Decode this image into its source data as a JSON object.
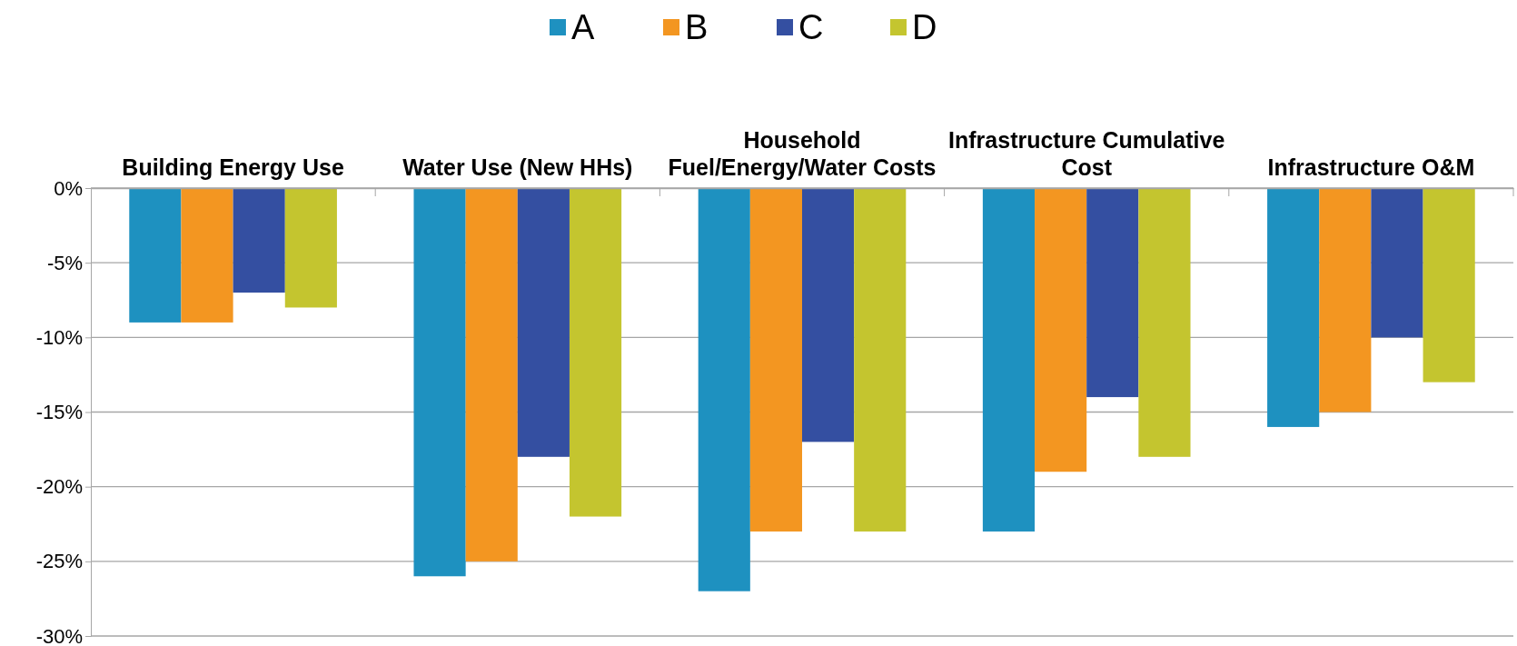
{
  "chart_data": {
    "type": "bar",
    "categories": [
      "Building Energy Use",
      "Water Use (New HHs)",
      "Household Fuel/Energy/Water Costs",
      "Infrastructure Cumulative Cost",
      "Infrastructure O&M"
    ],
    "series": [
      {
        "name": "A",
        "color": "#1e91c0",
        "values": [
          -9,
          -26,
          -27,
          -23,
          -16
        ]
      },
      {
        "name": "B",
        "color": "#f39621",
        "values": [
          -9,
          -25,
          -23,
          -19,
          -15
        ]
      },
      {
        "name": "C",
        "color": "#344fa1",
        "values": [
          -7,
          -18,
          -17,
          -14,
          -10
        ]
      },
      {
        "name": "D",
        "color": "#c4c52f",
        "values": [
          -8,
          -22,
          -23,
          -18,
          -13
        ]
      }
    ],
    "ylim": [
      -30,
      0
    ],
    "yticks": [
      {
        "value": -30,
        "label": "-30%"
      },
      {
        "value": -25,
        "label": "-25%"
      },
      {
        "value": -20,
        "label": "-20%"
      },
      {
        "value": -15,
        "label": "-15%"
      },
      {
        "value": -10,
        "label": "-10%"
      },
      {
        "value": -5,
        "label": "-5%"
      },
      {
        "value": 0,
        "label": "0%"
      }
    ],
    "grid": "y",
    "legend": "top"
  }
}
